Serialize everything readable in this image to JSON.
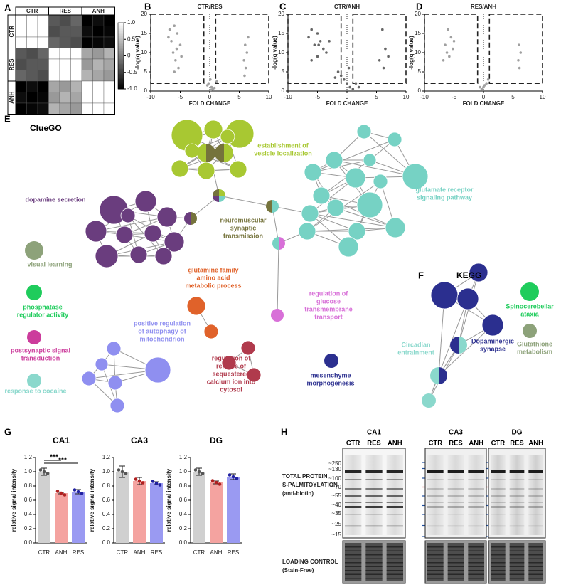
{
  "panel_labels": [
    "A",
    "B",
    "C",
    "D",
    "E",
    "F",
    "G",
    "H"
  ],
  "heatmap": {
    "groups": [
      "CTR",
      "RES",
      "ANH"
    ],
    "clim": [
      -1,
      1
    ],
    "colorbar_ticks": [
      {
        "value": 1,
        "label": "1.0"
      },
      {
        "value": 0.5,
        "label": "0.5"
      },
      0,
      {
        "value": -0.5,
        "label": "-0.5"
      },
      {
        "value": -1,
        "label": "-1.0"
      }
    ],
    "matrix": [
      [
        1,
        1,
        1,
        -0.3,
        -0.4,
        -0.2,
        -1,
        -0.9,
        -1
      ],
      [
        1,
        1,
        1,
        -0.4,
        -0.3,
        -0.3,
        -0.9,
        -1,
        -0.95
      ],
      [
        1,
        1,
        1,
        -0.2,
        -0.3,
        -0.4,
        -1,
        -0.95,
        -0.9
      ],
      [
        -0.3,
        -0.4,
        -0.2,
        1,
        1,
        1,
        0.3,
        0.2,
        0.4
      ],
      [
        -0.4,
        -0.3,
        -0.3,
        1,
        1,
        1,
        0.2,
        0.4,
        0.3
      ],
      [
        -0.2,
        -0.3,
        -0.4,
        1,
        1,
        1,
        0.4,
        0.3,
        0.2
      ],
      [
        -1,
        -0.9,
        -1,
        0.3,
        0.2,
        0.4,
        1,
        1,
        1
      ],
      [
        -0.9,
        -1,
        -0.95,
        0.2,
        0.4,
        0.3,
        1,
        1,
        1
      ],
      [
        -1,
        -0.95,
        -0.9,
        0.4,
        0.3,
        0.2,
        1,
        1,
        1
      ]
    ]
  },
  "volcano": [
    {
      "title": "CTR/RES",
      "xlabel": "FOLD CHANGE",
      "ylabel": "-log(q value)",
      "xlim": [
        -10,
        10
      ],
      "ylim": [
        0,
        20
      ],
      "xticks": [
        -10,
        -5,
        0,
        5,
        10
      ],
      "yticks": [
        0,
        5,
        10,
        15,
        20
      ],
      "fc_threshold": 1,
      "q_threshold": 2,
      "color": "#a0a0a0",
      "x": [
        -6,
        -5.5,
        -6.5,
        -5,
        -7,
        -6.2,
        -5.8,
        -4.8,
        -6.8,
        -5.3,
        -6,
        -5.6,
        6,
        6.3,
        5.8,
        6.5,
        6.1,
        5.9,
        0.3,
        -0.2,
        0.5,
        0.1,
        -0.4,
        0.8,
        0.2,
        1.2
      ],
      "y": [
        17,
        15,
        13,
        12,
        14,
        10,
        8,
        9,
        16,
        6,
        5,
        11,
        12,
        10,
        8,
        14,
        6,
        4,
        1,
        2,
        0.5,
        3,
        1.5,
        0.8,
        0.3,
        2.5
      ]
    },
    {
      "title": "CTR/ANH",
      "xlabel": "FOLD CHANGE",
      "ylabel": "-log(q value)",
      "xlim": [
        -10,
        10
      ],
      "ylim": [
        0,
        20
      ],
      "xticks": [
        -10,
        -5,
        0,
        5,
        10
      ],
      "yticks": [
        0,
        5,
        10,
        15,
        20
      ],
      "fc_threshold": 1,
      "q_threshold": 2,
      "color": "#666666",
      "x": [
        -6,
        -5,
        -4.5,
        -5.5,
        -6.5,
        -4,
        -3.5,
        -5,
        -6,
        -4.8,
        -3,
        6,
        6.5,
        7,
        5.5,
        6.2,
        -1,
        -0.5,
        0,
        0.5,
        1,
        -1.5,
        -2,
        0.3,
        1.5,
        2
      ],
      "y": [
        16,
        15,
        13,
        12,
        14,
        11,
        10,
        9,
        8,
        12,
        13,
        16,
        11,
        9,
        8,
        6,
        4,
        3,
        2,
        1,
        0.5,
        5,
        3.5,
        6,
        2,
        1
      ]
    },
    {
      "title": "RES/ANH",
      "xlabel": "FOLD CHANGE",
      "ylabel": "-log(q value)",
      "xlim": [
        -10,
        10
      ],
      "ylim": [
        0,
        20
      ],
      "xticks": [
        -10,
        -5,
        0,
        5,
        10
      ],
      "yticks": [
        0,
        5,
        10,
        15,
        20
      ],
      "fc_threshold": 1,
      "q_threshold": 2,
      "color": "#a0a0a0",
      "x": [
        -6,
        -5.5,
        -6.5,
        -5,
        -6.2,
        -5.8,
        -5.2,
        -6.8,
        6,
        6.3,
        5.9,
        6.1,
        0,
        0.5,
        -0.3,
        0.8,
        0.2,
        -0.6
      ],
      "y": [
        16,
        14,
        12,
        13,
        10,
        9,
        11,
        8,
        12,
        10,
        8,
        6,
        1,
        2,
        0.5,
        3,
        1.5,
        1
      ]
    }
  ],
  "cluego": {
    "title": "ClueGO",
    "terms": [
      {
        "lines": [
          "establishment of",
          "vesicle localization"
        ],
        "color": "#a8c832"
      },
      {
        "lines": [
          "glutamate receptor",
          "signaling pathway"
        ],
        "color": "#76d2c4"
      },
      {
        "lines": [
          "dopamine secretion"
        ],
        "color": "#6a3d7e"
      },
      {
        "lines": [
          "neuromuscular",
          "synaptic",
          "transmission"
        ],
        "color": "#75733c"
      },
      {
        "lines": [
          "glutamine family",
          "amino acid",
          "metabolic process"
        ],
        "color": "#e0622a"
      },
      {
        "lines": [
          "regulation of",
          "glucose",
          "transmembrane",
          "transport"
        ],
        "color": "#d870d8"
      },
      {
        "lines": [
          "positive regulation",
          "of autophagy of",
          "mitochondrion"
        ],
        "color": "#8f8ff0"
      },
      {
        "lines": [
          "regulation of",
          "release of",
          "sequestered",
          "calcium ion into",
          "cytosol"
        ],
        "color": "#b03a4c"
      },
      {
        "lines": [
          "mesenchyme",
          "morphogenesis"
        ],
        "color": "#2b2f8f"
      },
      {
        "lines": [
          "visual learning"
        ],
        "color": "#8da27a"
      },
      {
        "lines": [
          "phosphatase",
          "regulator activity"
        ],
        "color": "#1fcc5c"
      },
      {
        "lines": [
          "postsynaptic signal",
          "transduction"
        ],
        "color": "#cc3c9c"
      },
      {
        "lines": [
          "response to cocaine"
        ],
        "color": "#8ad8cc"
      }
    ]
  },
  "kegg": {
    "title": "KEGG",
    "terms": [
      {
        "lines": [
          "Spinocerebellar",
          "ataxia"
        ],
        "color": "#1fcc5c"
      },
      {
        "lines": [
          "Glutathione",
          "metabolism"
        ],
        "color": "#8da27a"
      },
      {
        "lines": [
          "Dopaminergic",
          "synapse"
        ],
        "color": "#2b2f8f"
      },
      {
        "lines": [
          "Circadian",
          "entrainment"
        ],
        "color": "#8ad8cc"
      }
    ]
  },
  "bar_charts": [
    {
      "type": "bar",
      "title": "CA1",
      "ylabel": "relative signal intensity",
      "categories": [
        "CTR",
        "ANH",
        "RES"
      ],
      "values": [
        1.0,
        0.7,
        0.72
      ],
      "errors": [
        0.05,
        0.01,
        0.03
      ],
      "colors": [
        "#d0d0d0",
        "#f4a3a0",
        "#9a9af2"
      ],
      "ylim": [
        0,
        1.2
      ],
      "yticks": [
        {
          "value": 0,
          "label": "0.0"
        },
        {
          "value": 0.2,
          "label": "0.2"
        },
        {
          "value": 0.4,
          "label": "0.4"
        },
        {
          "value": 0.6,
          "label": "0.6"
        },
        {
          "value": 0.8,
          "label": "0.8"
        },
        {
          "value": 1,
          "label": "1.0"
        },
        {
          "value": 1.2,
          "label": "1.2"
        }
      ],
      "annotations": [
        "***",
        "***"
      ]
    },
    {
      "type": "bar",
      "title": "CA3",
      "ylabel": "relative signal intensity",
      "categories": [
        "CTR",
        "ANH",
        "RES"
      ],
      "values": [
        1.0,
        0.87,
        0.84
      ],
      "errors": [
        0.08,
        0.05,
        0.02
      ],
      "colors": [
        "#d0d0d0",
        "#f4a3a0",
        "#9a9af2"
      ],
      "ylim": [
        0,
        1.2
      ],
      "yticks": [
        {
          "value": 0,
          "label": "0.0"
        },
        {
          "value": 0.2,
          "label": "0.2"
        },
        {
          "value": 0.4,
          "label": "0.4"
        },
        {
          "value": 0.6,
          "label": "0.6"
        },
        {
          "value": 0.8,
          "label": "0.8"
        },
        {
          "value": 1,
          "label": "1.0"
        },
        {
          "value": 1.2,
          "label": "1.2"
        }
      ]
    },
    {
      "type": "bar",
      "title": "DG",
      "ylabel": "relative signal intensity",
      "categories": [
        "CTR",
        "ANH",
        "RES"
      ],
      "values": [
        1.0,
        0.85,
        0.93
      ],
      "errors": [
        0.05,
        0.02,
        0.04
      ],
      "colors": [
        "#d0d0d0",
        "#f4a3a0",
        "#9a9af2"
      ],
      "ylim": [
        0,
        1.2
      ],
      "yticks": [
        {
          "value": 0,
          "label": "0.0"
        },
        {
          "value": 0.2,
          "label": "0.2"
        },
        {
          "value": 0.4,
          "label": "0.4"
        },
        {
          "value": 0.6,
          "label": "0.6"
        },
        {
          "value": 0.8,
          "label": "0.8"
        },
        {
          "value": 1,
          "label": "1.0"
        },
        {
          "value": 1.2,
          "label": "1.2"
        }
      ]
    }
  ],
  "blot": {
    "regions": [
      "CA1",
      "CA3",
      "DG"
    ],
    "lanes": [
      "CTR",
      "RES",
      "ANH"
    ],
    "top_labels": [
      "TOTAL PROTEIN",
      "S-PALMITOYLATION",
      "(anti-biotin)"
    ],
    "bottom_labels": [
      "LOADING CONTROL",
      "(Stain-Free)"
    ],
    "markers": [
      "~250",
      "~130",
      "~100",
      "~70",
      "~55",
      "~40",
      "~35",
      "~25",
      "~15"
    ]
  }
}
